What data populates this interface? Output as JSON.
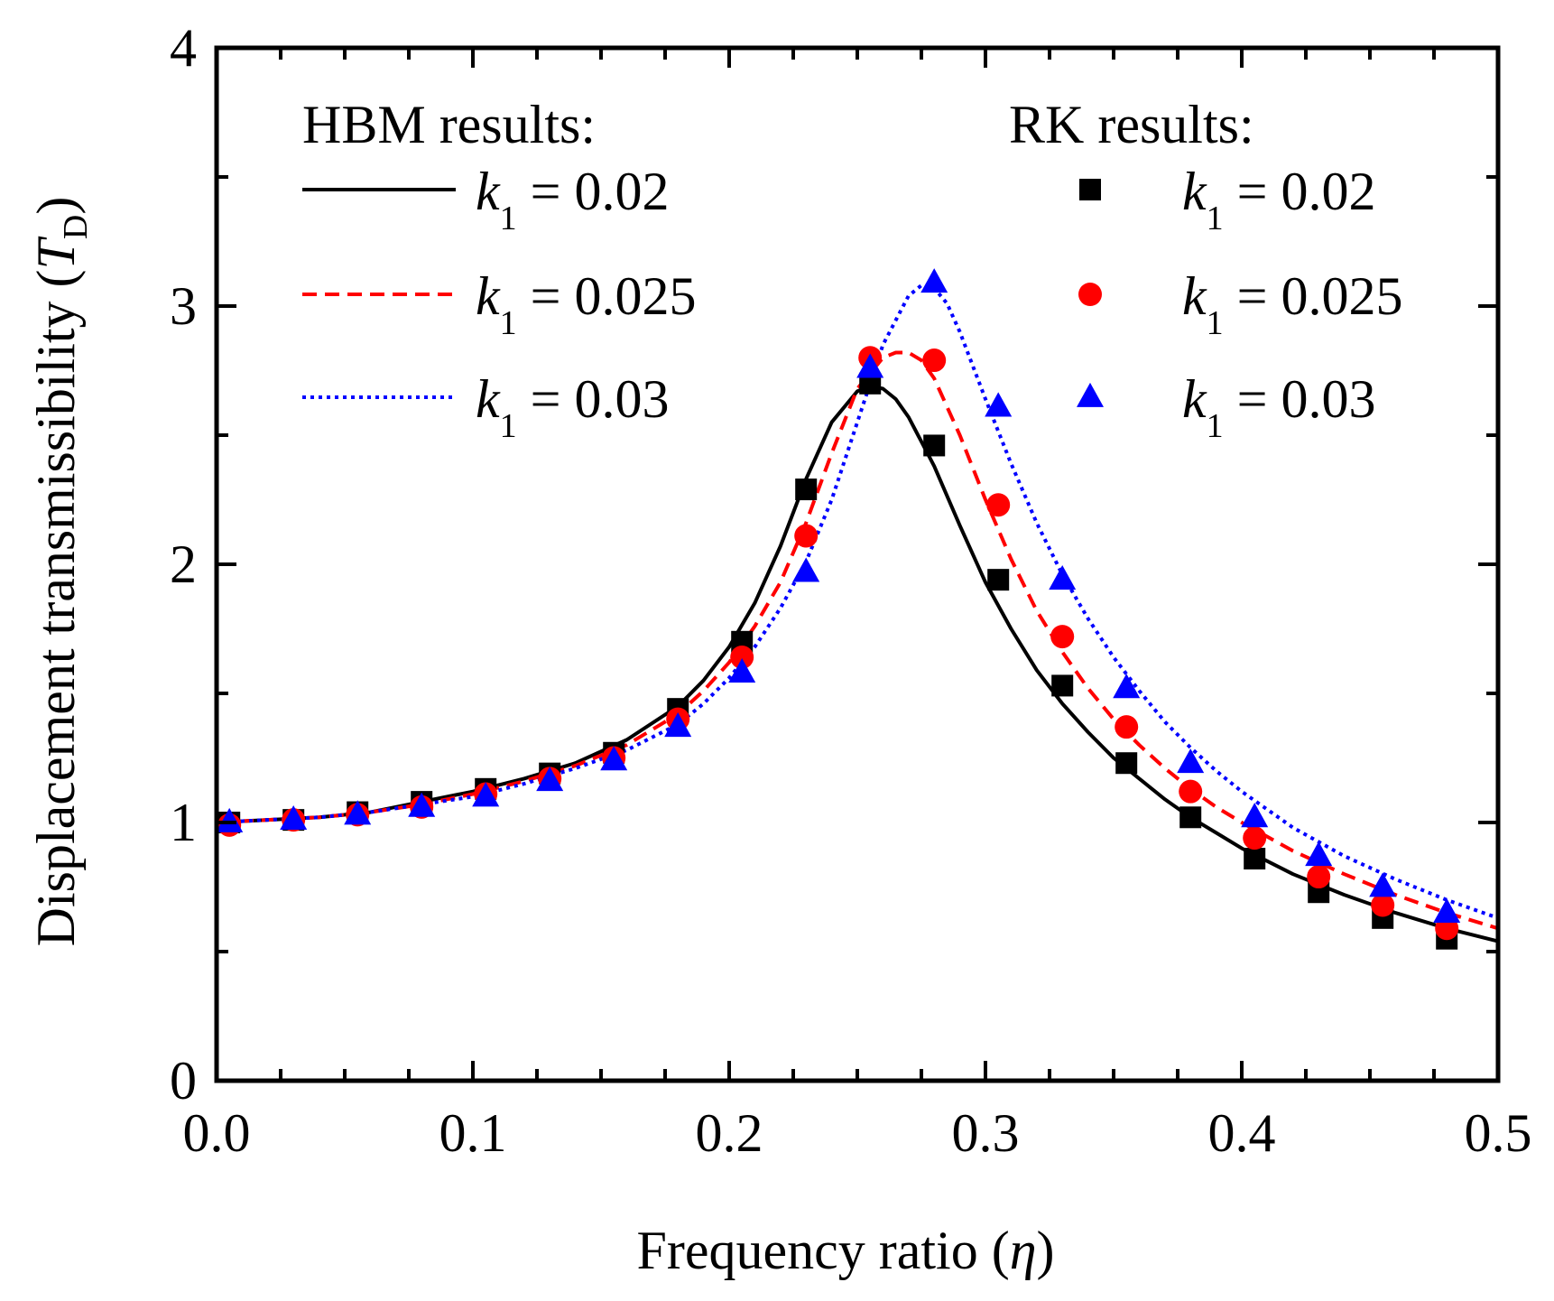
{
  "chart_data": {
    "type": "line",
    "title": "",
    "xlabel": "Frequency ratio",
    "xlabel_symbol": "η",
    "ylabel": "Displacement transmissibility",
    "ylabel_symbol": "T",
    "ylabel_subscript": "D",
    "xlim": [
      0,
      0.5
    ],
    "ylim": [
      0,
      4
    ],
    "xticks": [
      "0.0",
      "0.1",
      "0.2",
      "0.3",
      "0.4",
      "0.5"
    ],
    "yticks": [
      "0",
      "1",
      "2",
      "3",
      "4"
    ],
    "legend_hbm_header": "HBM results:",
    "legend_rk_header": "RK results:",
    "series_symbol": "k",
    "series_subscript": "1",
    "lines": [
      {
        "name": "HBM k1 = 0.02",
        "k_value": "= 0.02",
        "color": "#000000",
        "dash": "solid",
        "x": [
          0,
          0.02,
          0.04,
          0.06,
          0.08,
          0.1,
          0.12,
          0.14,
          0.16,
          0.18,
          0.19,
          0.2,
          0.21,
          0.22,
          0.23,
          0.24,
          0.25,
          0.255,
          0.26,
          0.265,
          0.27,
          0.28,
          0.29,
          0.3,
          0.31,
          0.32,
          0.33,
          0.34,
          0.35,
          0.36,
          0.37,
          0.38,
          0.39,
          0.4,
          0.42,
          0.44,
          0.46,
          0.48,
          0.5
        ],
        "y": [
          1.0,
          1.01,
          1.02,
          1.04,
          1.08,
          1.12,
          1.17,
          1.23,
          1.32,
          1.45,
          1.55,
          1.68,
          1.85,
          2.07,
          2.33,
          2.55,
          2.67,
          2.69,
          2.68,
          2.64,
          2.57,
          2.38,
          2.15,
          1.93,
          1.75,
          1.59,
          1.46,
          1.35,
          1.25,
          1.17,
          1.09,
          1.02,
          0.96,
          0.9,
          0.8,
          0.72,
          0.65,
          0.59,
          0.54
        ]
      },
      {
        "name": "HBM k1 = 0.025",
        "k_value": "= 0.025",
        "color": "#ff0000",
        "dash": "dashed",
        "x": [
          0,
          0.02,
          0.04,
          0.06,
          0.08,
          0.1,
          0.12,
          0.14,
          0.16,
          0.18,
          0.19,
          0.2,
          0.21,
          0.22,
          0.23,
          0.24,
          0.25,
          0.26,
          0.265,
          0.27,
          0.275,
          0.28,
          0.29,
          0.3,
          0.31,
          0.32,
          0.33,
          0.34,
          0.35,
          0.36,
          0.37,
          0.38,
          0.39,
          0.4,
          0.42,
          0.44,
          0.46,
          0.48,
          0.5
        ],
        "y": [
          1.0,
          1.01,
          1.02,
          1.04,
          1.07,
          1.11,
          1.16,
          1.22,
          1.3,
          1.42,
          1.51,
          1.62,
          1.76,
          1.93,
          2.16,
          2.43,
          2.68,
          2.8,
          2.82,
          2.82,
          2.79,
          2.72,
          2.5,
          2.25,
          2.02,
          1.82,
          1.66,
          1.52,
          1.4,
          1.3,
          1.21,
          1.13,
          1.06,
          1.0,
          0.89,
          0.8,
          0.72,
          0.65,
          0.59
        ]
      },
      {
        "name": "HBM k1 = 0.03",
        "k_value": "= 0.03",
        "color": "#0000ff",
        "dash": "dotted",
        "x": [
          0,
          0.02,
          0.04,
          0.06,
          0.08,
          0.1,
          0.12,
          0.14,
          0.16,
          0.18,
          0.19,
          0.2,
          0.21,
          0.22,
          0.23,
          0.24,
          0.25,
          0.26,
          0.27,
          0.275,
          0.28,
          0.285,
          0.29,
          0.3,
          0.31,
          0.32,
          0.33,
          0.34,
          0.35,
          0.36,
          0.37,
          0.38,
          0.39,
          0.4,
          0.42,
          0.44,
          0.46,
          0.48,
          0.5
        ],
        "y": [
          1.0,
          1.01,
          1.02,
          1.04,
          1.07,
          1.1,
          1.15,
          1.21,
          1.28,
          1.38,
          1.46,
          1.56,
          1.68,
          1.83,
          2.01,
          2.25,
          2.55,
          2.85,
          3.04,
          3.08,
          3.07,
          3.01,
          2.9,
          2.64,
          2.39,
          2.16,
          1.96,
          1.79,
          1.64,
          1.51,
          1.39,
          1.29,
          1.2,
          1.12,
          0.98,
          0.87,
          0.78,
          0.7,
          0.63
        ]
      }
    ],
    "markers": [
      {
        "name": "RK k1 = 0.02",
        "k_value": "= 0.02",
        "color": "#000000",
        "shape": "square",
        "x": [
          0.005,
          0.03,
          0.055,
          0.08,
          0.105,
          0.13,
          0.155,
          0.18,
          0.205,
          0.23,
          0.255,
          0.28,
          0.305,
          0.33,
          0.355,
          0.38,
          0.405,
          0.43,
          0.455,
          0.48
        ],
        "y": [
          1.0,
          1.01,
          1.04,
          1.08,
          1.13,
          1.19,
          1.27,
          1.44,
          1.7,
          2.29,
          2.7,
          2.46,
          1.94,
          1.53,
          1.23,
          1.02,
          0.86,
          0.73,
          0.63,
          0.55
        ]
      },
      {
        "name": "RK k1 = 0.025",
        "k_value": "= 0.025",
        "color": "#ff0000",
        "shape": "circle",
        "x": [
          0.005,
          0.03,
          0.055,
          0.08,
          0.105,
          0.13,
          0.155,
          0.18,
          0.205,
          0.23,
          0.255,
          0.28,
          0.305,
          0.33,
          0.355,
          0.38,
          0.405,
          0.43,
          0.455,
          0.48
        ],
        "y": [
          0.99,
          1.01,
          1.03,
          1.06,
          1.11,
          1.17,
          1.25,
          1.4,
          1.64,
          2.11,
          2.8,
          2.79,
          2.23,
          1.72,
          1.37,
          1.12,
          0.94,
          0.79,
          0.68,
          0.59
        ]
      },
      {
        "name": "RK k1 = 0.03",
        "k_value": "= 0.03",
        "color": "#0000ff",
        "shape": "triangle",
        "x": [
          0.005,
          0.03,
          0.055,
          0.08,
          0.105,
          0.13,
          0.155,
          0.18,
          0.205,
          0.23,
          0.255,
          0.28,
          0.305,
          0.33,
          0.355,
          0.38,
          0.405,
          0.43,
          0.455,
          0.48
        ],
        "y": [
          1.0,
          1.01,
          1.03,
          1.06,
          1.1,
          1.16,
          1.24,
          1.37,
          1.58,
          1.97,
          2.76,
          3.09,
          2.61,
          1.94,
          1.52,
          1.23,
          1.02,
          0.87,
          0.75,
          0.65
        ]
      }
    ]
  }
}
